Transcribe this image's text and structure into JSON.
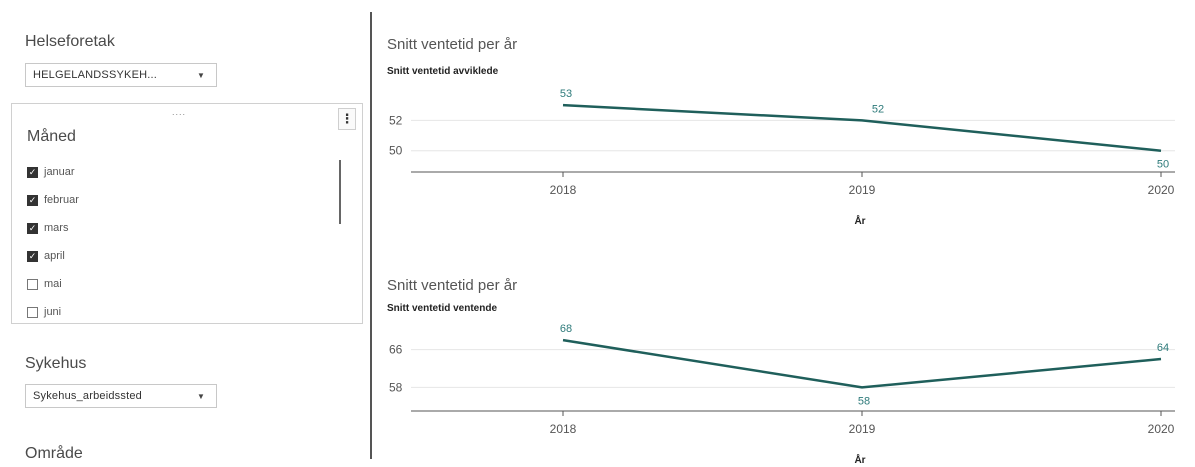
{
  "filters": {
    "helseforetak": {
      "label": "Helseforetak",
      "value": "HELGELANDSSYKEH..."
    },
    "maned": {
      "label": "Måned",
      "grip": "....",
      "menu": "⋮",
      "items": [
        {
          "label": "januar",
          "checked": true
        },
        {
          "label": "februar",
          "checked": true
        },
        {
          "label": "mars",
          "checked": true
        },
        {
          "label": "april",
          "checked": true
        },
        {
          "label": "mai",
          "checked": false
        },
        {
          "label": "juni",
          "checked": false
        }
      ]
    },
    "sykehus": {
      "label": "Sykehus",
      "value": "Sykehus_arbeidssted"
    },
    "omrade": {
      "label": "Område"
    }
  },
  "charts": [
    {
      "title": "Snitt ventetid per år",
      "subtitle": "Snitt ventetid avviklede",
      "xlabel": "År"
    },
    {
      "title": "Snitt ventetid per år",
      "subtitle": "Snitt ventetid ventende",
      "xlabel": "År"
    }
  ],
  "chart_data": [
    {
      "type": "line",
      "x": [
        "2018",
        "2019",
        "2020"
      ],
      "series": [
        {
          "values": [
            53,
            52,
            50
          ],
          "labels": [
            "53",
            "52",
            "50"
          ],
          "color": "#1f5f5b"
        }
      ],
      "yticks": [
        "50",
        "52"
      ],
      "ytick_values": [
        50,
        52
      ],
      "ylim": [
        48.6,
        54
      ],
      "xlabel": "År",
      "grid": true
    },
    {
      "type": "line",
      "x": [
        "2018",
        "2019",
        "2020"
      ],
      "series": [
        {
          "values": [
            68,
            58,
            64
          ],
          "labels": [
            "68",
            "58",
            "64"
          ],
          "color": "#1f5f5b"
        }
      ],
      "yticks": [
        "58",
        "66"
      ],
      "ytick_values": [
        58,
        66
      ],
      "ylim": [
        53,
        71
      ],
      "xlabel": "År",
      "grid": true
    }
  ]
}
